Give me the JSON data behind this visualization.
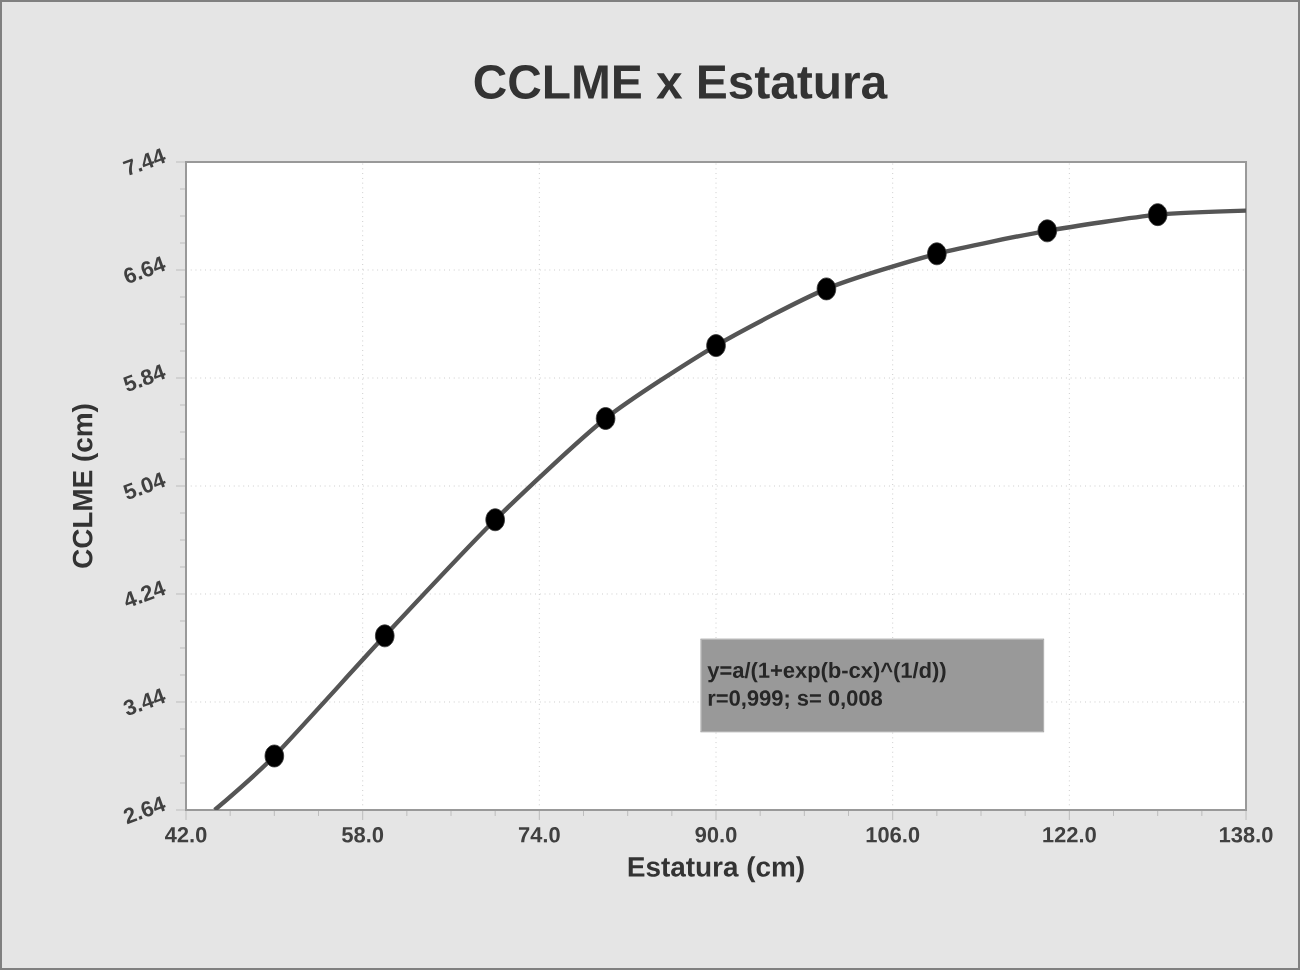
{
  "chart_data": {
    "type": "scatter",
    "title": "CCLME x Estatura",
    "xlabel": "Estatura (cm)",
    "ylabel": "CCLME (cm)",
    "annotations": [
      "y=a/(1+exp(b-cx)^(1/d))",
      "r=0,999; s= 0,008"
    ],
    "series": [
      {
        "color": "#333333",
        "marker": "circle",
        "x": [
          50,
          60,
          70,
          80,
          90,
          100,
          110,
          120,
          130
        ],
        "values": [
          3.04,
          3.93,
          4.79,
          5.54,
          6.08,
          6.5,
          6.76,
          6.93,
          7.05
        ]
      },
      {
        "type": "line",
        "color": "#555555",
        "marker": "none",
        "line_style": "solid",
        "x": [
          44.6,
          50,
          60,
          70,
          80,
          90,
          100,
          110,
          120,
          130,
          138
        ],
        "values": [
          2.64,
          3.04,
          3.93,
          4.79,
          5.54,
          6.08,
          6.5,
          6.76,
          6.93,
          7.05,
          7.08
        ]
      }
    ],
    "xlim": [
      42,
      138
    ],
    "ylim": [
      2.64,
      7.44
    ],
    "xticks": [
      {
        "value": 42,
        "label": "42.0"
      },
      {
        "value": 58,
        "label": "58.0"
      },
      {
        "value": 74,
        "label": "74.0"
      },
      {
        "value": 90,
        "label": "90.0"
      },
      {
        "value": 106,
        "label": "106.0"
      },
      {
        "value": 122,
        "label": "122.0"
      },
      {
        "value": 138,
        "label": "138.0"
      }
    ],
    "yticks": [
      2.64,
      3.44,
      4.24,
      5.04,
      5.84,
      6.64,
      7.44
    ],
    "grid": true
  }
}
